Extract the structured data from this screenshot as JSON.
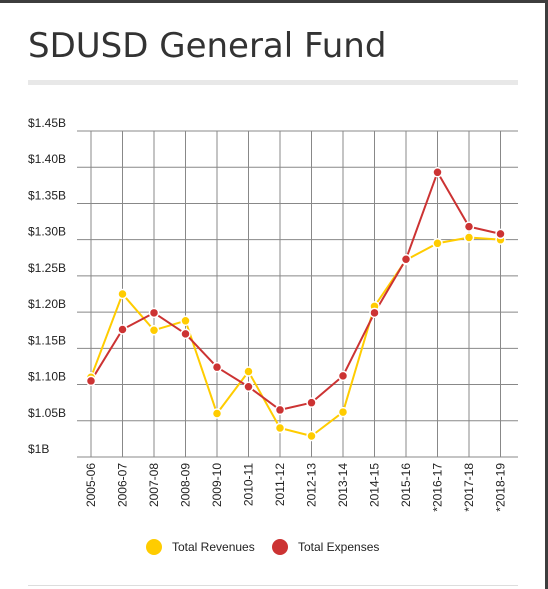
{
  "title": "SDUSD General Fund",
  "colors": {
    "revenues": "#ffcc00",
    "expenses": "#cc3333",
    "grid": "#888888"
  },
  "chart_data": {
    "type": "line",
    "categories": [
      "2005-06",
      "2006-07",
      "2007-08",
      "2008-09",
      "2009-10",
      "2010-11",
      "2011-12",
      "2012-13",
      "2013-14",
      "2014-15",
      "2015-16",
      "*2016-17",
      "*2017-18",
      "*2018-19"
    ],
    "y_ticks": [
      "$1B",
      "$1.05B",
      "$1.10B",
      "$1.15B",
      "$1.20B",
      "$1.25B",
      "$1.30B",
      "$1.35B",
      "$1.40B",
      "$1.45B"
    ],
    "ylim": [
      1.0,
      1.45
    ],
    "grid": true,
    "legend_position": "bottom",
    "series": [
      {
        "name": "Total Revenues",
        "color": "#ffcc00",
        "values": [
          1.11,
          1.225,
          1.175,
          1.188,
          1.06,
          1.118,
          1.04,
          1.029,
          1.062,
          1.208,
          1.272,
          1.295,
          1.303,
          1.3
        ]
      },
      {
        "name": "Total Expenses",
        "color": "#cc3333",
        "values": [
          1.105,
          1.176,
          1.199,
          1.17,
          1.124,
          1.097,
          1.065,
          1.075,
          1.112,
          1.199,
          1.273,
          1.393,
          1.318,
          1.308
        ]
      }
    ]
  }
}
